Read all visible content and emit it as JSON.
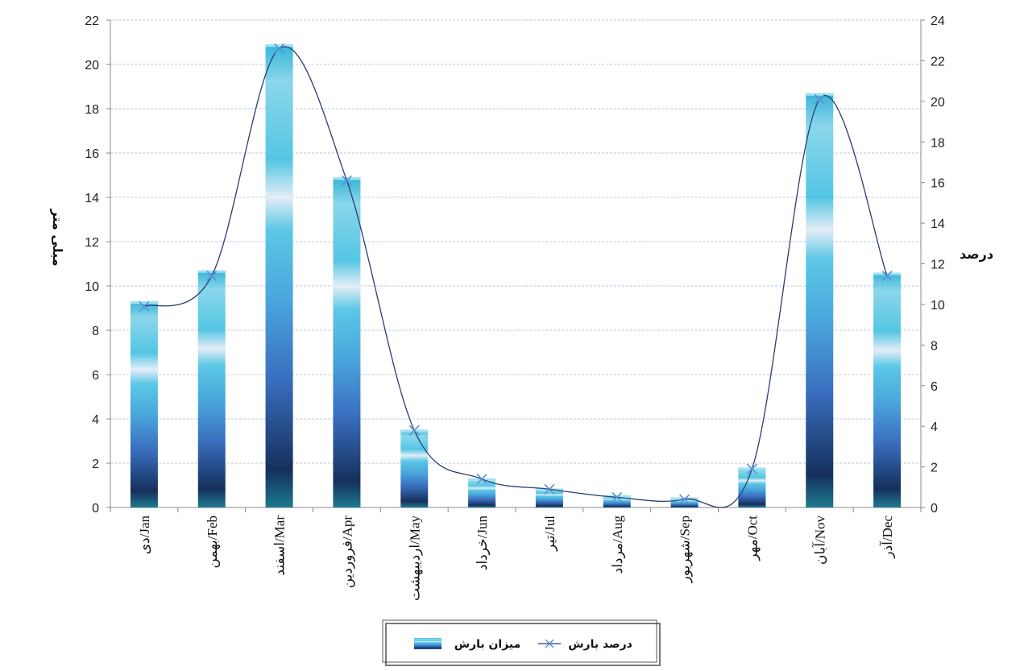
{
  "chart_data": {
    "type": "bar",
    "categories": [
      "دی/Jan",
      "بهمن/Feb",
      "اسفند/Mar",
      "فروردین/Apr",
      "اردیبهشت/May",
      "خرداد/Jun",
      "تیر/Jul",
      "مرداد/Aug",
      "شهریور/Sep",
      "مهر/Oct",
      "آبان/Nov",
      "آذر/Dec"
    ],
    "series": [
      {
        "name": "میزان بارش",
        "type": "bar",
        "axis": "left",
        "values": [
          9.3,
          10.7,
          20.9,
          14.9,
          3.5,
          1.3,
          0.85,
          0.55,
          0.45,
          1.8,
          18.7,
          10.6
        ]
      },
      {
        "name": "درصد بارش",
        "type": "line",
        "axis": "right",
        "values": [
          9.9,
          11.4,
          22.6,
          16.1,
          3.8,
          1.4,
          0.9,
          0.5,
          0.4,
          1.9,
          20.1,
          11.4
        ]
      }
    ],
    "ylabel": "میلی متر",
    "y2label": "درصد",
    "ylim": [
      0,
      22
    ],
    "y2lim": [
      0,
      24
    ],
    "yticks": [
      0,
      2,
      4,
      6,
      8,
      10,
      12,
      14,
      16,
      18,
      20,
      22
    ],
    "y2ticks": [
      0,
      2,
      4,
      6,
      8,
      10,
      12,
      14,
      16,
      18,
      20,
      22,
      24
    ],
    "grid": true,
    "legend": "bottom"
  },
  "legend": {
    "line_label": "درصد بارش",
    "bar_label": "میزان بارش"
  },
  "colors": {
    "line": "#2a3f6e",
    "marker": "#5b8fd8",
    "grid": "#b8c8e0",
    "axis": "#888888"
  }
}
